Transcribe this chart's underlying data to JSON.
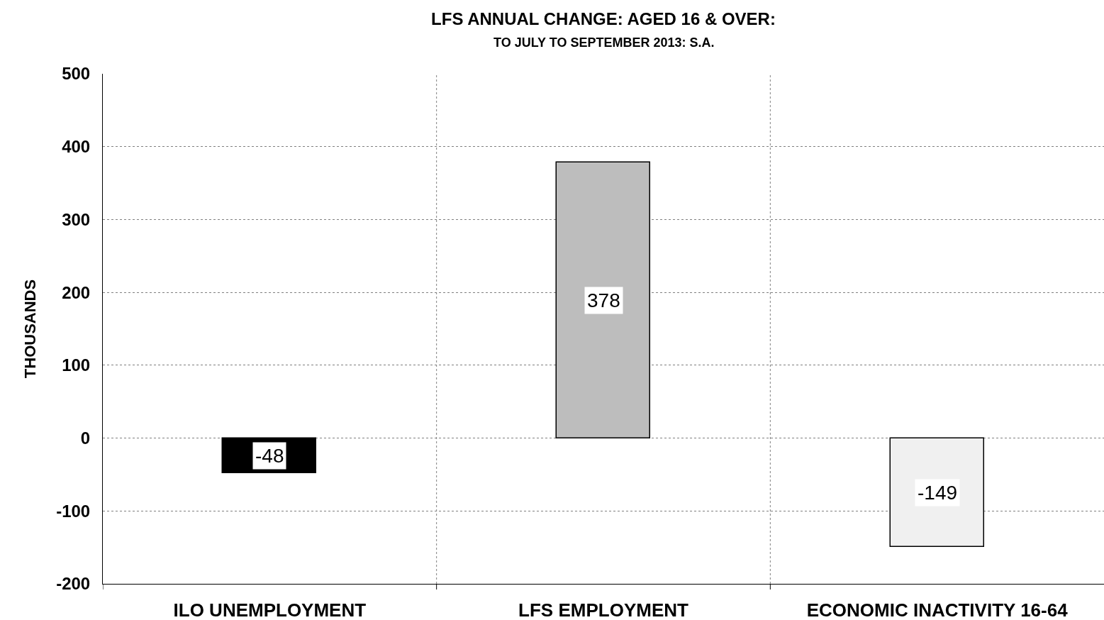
{
  "chart_data": {
    "type": "bar",
    "title": "LFS ANNUAL CHANGE: AGED 16 & OVER:",
    "subtitle": "TO JULY TO SEPTEMBER 2013: S.A.",
    "ylabel": "THOUSANDS",
    "categories": [
      "ILO UNEMPLOYMENT",
      "LFS EMPLOYMENT",
      "ECONOMIC INACTIVITY 16-64"
    ],
    "values": [
      -48,
      378,
      -149
    ],
    "colors": [
      "#000000",
      "#bdbdbd",
      "#f0f0f0"
    ],
    "ylim": [
      -200,
      500
    ],
    "yticks": [
      -200,
      -100,
      0,
      100,
      200,
      300,
      400,
      500
    ],
    "grid": true,
    "data_labels": true
  }
}
